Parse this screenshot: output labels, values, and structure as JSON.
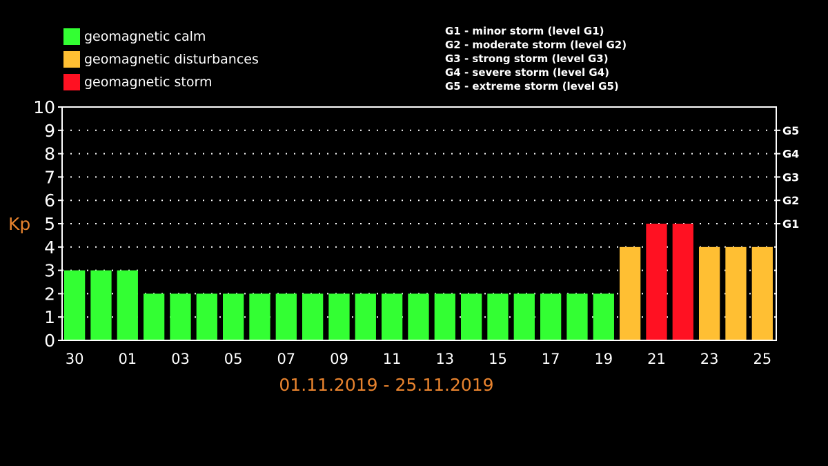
{
  "legend": {
    "items": [
      {
        "label": "geomagnetic calm",
        "color": "#33ff33"
      },
      {
        "label": "geomagnetic disturbances",
        "color": "#ffbf33"
      },
      {
        "label": "geomagnetic storm",
        "color": "#ff1122"
      }
    ]
  },
  "storm_levels": [
    "G1 - minor storm (level G1)",
    "G2 - moderate storm (level G2)",
    "G3 - strong storm (level G3)",
    "G4 - severe storm (level G4)",
    "G5 - extreme storm (level G5)"
  ],
  "chart_data": {
    "type": "bar",
    "ylabel": "Kp",
    "xlabel": "01.11.2019 - 25.11.2019",
    "ylim": [
      0,
      10
    ],
    "yticks": [
      0,
      1,
      2,
      3,
      4,
      5,
      6,
      7,
      8,
      9,
      10
    ],
    "right_axis": [
      {
        "value": 5,
        "label": "G1"
      },
      {
        "value": 6,
        "label": "G2"
      },
      {
        "value": 7,
        "label": "G3"
      },
      {
        "value": 8,
        "label": "G4"
      },
      {
        "value": 9,
        "label": "G5"
      }
    ],
    "grid": "dotted horizontal",
    "categories": [
      "30",
      "31",
      "01",
      "02",
      "03",
      "04",
      "05",
      "06",
      "07",
      "08",
      "09",
      "10",
      "11",
      "12",
      "13",
      "14",
      "15",
      "16",
      "17",
      "18",
      "19",
      "20",
      "21",
      "22",
      "23",
      "24",
      "25"
    ],
    "xtick_labels": [
      "30",
      "",
      "01",
      "",
      "03",
      "",
      "05",
      "",
      "07",
      "",
      "09",
      "",
      "11",
      "",
      "13",
      "",
      "15",
      "",
      "17",
      "",
      "19",
      "",
      "21",
      "",
      "23",
      "",
      "25"
    ],
    "values": [
      3,
      3,
      3,
      2,
      2,
      2,
      2,
      2,
      2,
      2,
      2,
      2,
      2,
      2,
      2,
      2,
      2,
      2,
      2,
      2,
      2,
      4,
      5,
      5,
      4,
      4,
      4
    ],
    "bar_colors": [
      "#33ff33",
      "#33ff33",
      "#33ff33",
      "#33ff33",
      "#33ff33",
      "#33ff33",
      "#33ff33",
      "#33ff33",
      "#33ff33",
      "#33ff33",
      "#33ff33",
      "#33ff33",
      "#33ff33",
      "#33ff33",
      "#33ff33",
      "#33ff33",
      "#33ff33",
      "#33ff33",
      "#33ff33",
      "#33ff33",
      "#33ff33",
      "#ffbf33",
      "#ff1122",
      "#ff1122",
      "#ffbf33",
      "#ffbf33",
      "#ffbf33"
    ],
    "label_color": "#e8832e"
  }
}
